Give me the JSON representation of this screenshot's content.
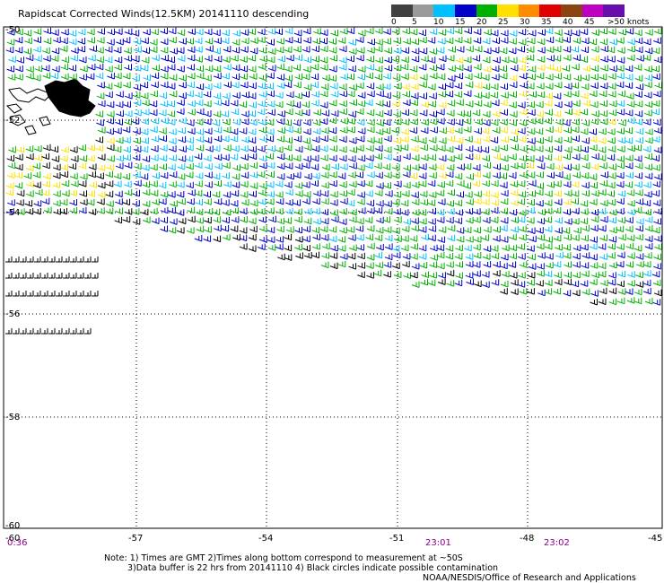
{
  "title": "Rapidscat Corrected Winds(12.5KM) 20141110 descending",
  "colorbar": {
    "labels": [
      "0",
      "5",
      "10",
      "15",
      "20",
      "25",
      "30",
      "35",
      "40",
      "45",
      ">50 knots"
    ],
    "colors": [
      "#404040",
      "#9a9a9a",
      "#00c0ff",
      "#0000c8",
      "#00b000",
      "#ffe000",
      "#ff8c00",
      "#e00000",
      "#8b4513",
      "#c000c0",
      "#6a0dad"
    ]
  },
  "map": {
    "lat_labels": [
      "-50",
      "-52",
      "-54",
      "-56",
      "-58",
      "-60"
    ],
    "lon_labels": [
      "-57",
      "-54",
      "-51",
      "-48",
      "-45"
    ],
    "corner_lon": "-60",
    "time_labels": [
      "0:36",
      "23:01",
      "23:02"
    ]
  },
  "notes": {
    "line1": "Note: 1) Times are GMT 2)Times along bottom correspond to measurement at ~50S",
    "line2": "3)Data buffer is 22 hrs from 20141110 4) Black circles indicate possible contamination",
    "credit": "NOAA/NESDIS/Office of Research and Applications"
  }
}
